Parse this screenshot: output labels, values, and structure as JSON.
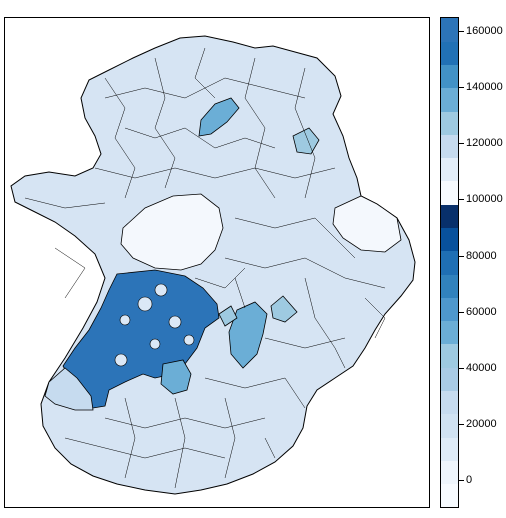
{
  "map": {
    "region_colors": {
      "background_region": "#d6e4f3",
      "outline": "#000000",
      "very_light": "#f4f8fd",
      "light": "#dbe8f6",
      "mid": "#9ecae1",
      "mid_blue": "#6baed6",
      "dark": "#2c74b8"
    }
  },
  "legend": {
    "palette": [
      "#f7fbff",
      "#eef5fc",
      "#deebf7",
      "#d0e2f2",
      "#c6dbef",
      "#a9cbe5",
      "#9ecae1",
      "#6baed6",
      "#4e98cd",
      "#3182bd",
      "#1f6fb4",
      "#08519c",
      "#08306b",
      "#f7fbff",
      "#e3eef9",
      "#c6dbef",
      "#9ecae1",
      "#6baed6",
      "#4292c6",
      "#2171b5",
      "#2c74b8"
    ],
    "ticks": [
      "0",
      "20000",
      "40000",
      "60000",
      "80000",
      "100000",
      "120000",
      "140000",
      "160000"
    ]
  }
}
